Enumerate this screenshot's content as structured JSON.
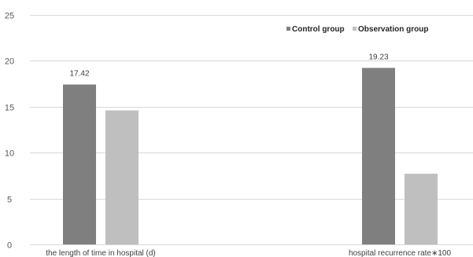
{
  "chart_data": {
    "type": "bar",
    "categories": [
      "the length of time in hospital (d)",
      "hospital recurrence rate∗100"
    ],
    "series": [
      {
        "name": "Control group",
        "values": [
          17.42,
          19.23
        ],
        "color": "#7f7f7f",
        "labels": [
          "17.42",
          "19.23"
        ]
      },
      {
        "name": "Observation group",
        "values": [
          14.6,
          7.7
        ],
        "color": "#bfbfbf",
        "labels": [
          "",
          ""
        ]
      }
    ],
    "title": "",
    "xlabel": "",
    "ylabel": "",
    "ylim": [
      0,
      25
    ],
    "yticks": [
      0,
      5,
      10,
      15,
      20,
      25
    ],
    "ytick_labels": [
      "0",
      "5",
      "10",
      "15",
      "20",
      "25"
    ],
    "grid": true,
    "legend": "top-right"
  }
}
